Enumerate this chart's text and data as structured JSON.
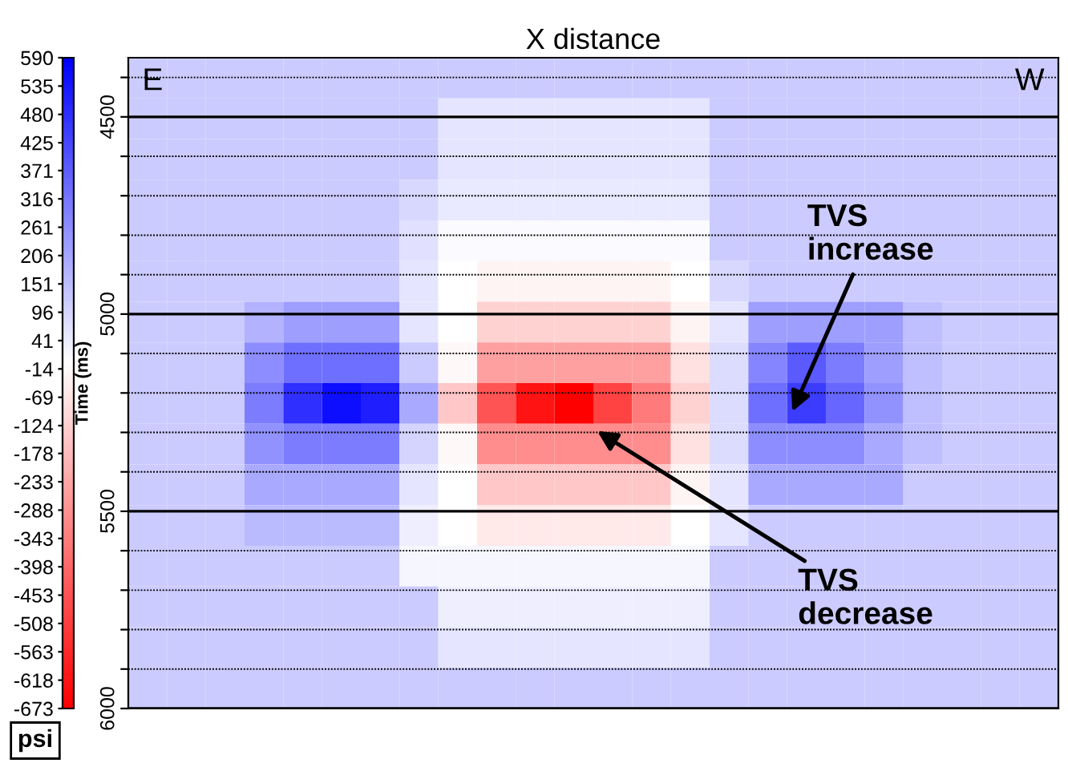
{
  "chart_data": {
    "type": "heatmap",
    "xlabel": "X distance",
    "ylabel": "Time (ms)",
    "clabel": "psi",
    "categories": [
      null,
      null,
      null,
      null,
      null,
      null,
      null,
      null,
      null,
      null,
      null,
      null,
      null,
      null,
      null,
      null,
      null,
      null,
      null,
      null,
      null,
      null,
      null,
      null
    ],
    "ylim": [
      6000,
      4350
    ],
    "yticks": [
      {
        "value": 4400,
        "label": null
      },
      4500,
      {
        "value": 4600,
        "label": null
      },
      {
        "value": 4700,
        "label": null
      },
      {
        "value": 4800,
        "label": null
      },
      {
        "value": 4900,
        "label": null
      },
      5000,
      {
        "value": 5100,
        "label": null
      },
      {
        "value": 5200,
        "label": null
      },
      {
        "value": 5300,
        "label": null
      },
      {
        "value": 5400,
        "label": null
      },
      5500,
      {
        "value": 5600,
        "label": null
      },
      {
        "value": 5700,
        "label": null
      },
      {
        "value": 5800,
        "label": null
      },
      {
        "value": 5900,
        "label": null
      },
      6000
    ],
    "grid": "y",
    "tick_labels": "y",
    "colors": [
      "#ff0000",
      "#ffffff",
      "#0000ff"
    ],
    "clim": [
      -673,
      590
    ],
    "cticks": [
      590,
      535,
      480,
      425,
      371,
      316,
      261,
      206,
      151,
      96,
      41,
      -14,
      -69,
      -124,
      -178,
      -233,
      -288,
      -343,
      -398,
      -453,
      -508,
      -563,
      -618,
      -673
    ],
    "cells": [
      [
        120,
        120,
        120,
        120,
        120,
        120,
        120,
        120,
        120,
        120,
        120,
        120,
        120,
        120,
        120,
        120,
        120,
        120,
        120,
        120,
        120,
        120,
        120,
        120
      ],
      [
        120,
        120,
        120,
        120,
        120,
        120,
        120,
        120,
        60,
        60,
        60,
        60,
        60,
        60,
        60,
        120,
        120,
        120,
        120,
        120,
        120,
        120,
        120,
        120
      ],
      [
        120,
        120,
        120,
        120,
        120,
        120,
        120,
        120,
        60,
        60,
        60,
        60,
        60,
        60,
        60,
        120,
        120,
        120,
        120,
        120,
        120,
        120,
        120,
        120
      ],
      [
        120,
        120,
        120,
        120,
        120,
        120,
        120,
        90,
        50,
        50,
        50,
        50,
        50,
        50,
        50,
        120,
        120,
        120,
        120,
        120,
        120,
        120,
        120,
        120
      ],
      [
        120,
        120,
        120,
        120,
        120,
        120,
        120,
        70,
        10,
        10,
        10,
        10,
        10,
        10,
        10,
        120,
        120,
        120,
        120,
        120,
        120,
        120,
        120,
        120
      ],
      [
        120,
        120,
        120,
        120,
        120,
        120,
        120,
        60,
        0,
        -30,
        -30,
        -30,
        -30,
        -30,
        0,
        90,
        120,
        120,
        120,
        120,
        120,
        120,
        120,
        120
      ],
      [
        120,
        120,
        120,
        180,
        220,
        220,
        220,
        60,
        0,
        -120,
        -120,
        -120,
        -120,
        -120,
        -30,
        60,
        220,
        220,
        220,
        220,
        150,
        120,
        120,
        120
      ],
      [
        120,
        120,
        120,
        260,
        330,
        330,
        330,
        120,
        -20,
        -250,
        -250,
        -250,
        -250,
        -250,
        -80,
        80,
        280,
        380,
        300,
        220,
        150,
        120,
        120,
        120
      ],
      [
        120,
        120,
        120,
        300,
        480,
        560,
        520,
        200,
        -150,
        -450,
        -620,
        -673,
        -500,
        -350,
        -120,
        80,
        330,
        450,
        350,
        250,
        150,
        120,
        120,
        120
      ],
      [
        120,
        120,
        120,
        250,
        300,
        300,
        300,
        100,
        -20,
        -300,
        -300,
        -300,
        -300,
        -300,
        -80,
        80,
        260,
        260,
        260,
        200,
        150,
        120,
        120,
        120
      ],
      [
        120,
        120,
        120,
        200,
        200,
        200,
        200,
        60,
        0,
        -150,
        -150,
        -150,
        -150,
        -150,
        -30,
        60,
        200,
        200,
        200,
        200,
        120,
        120,
        120,
        120
      ],
      [
        120,
        120,
        120,
        160,
        160,
        160,
        160,
        40,
        0,
        -60,
        -60,
        -60,
        -60,
        -60,
        0,
        60,
        120,
        120,
        120,
        120,
        120,
        120,
        120,
        120
      ],
      [
        120,
        120,
        120,
        120,
        120,
        120,
        120,
        20,
        20,
        20,
        20,
        20,
        20,
        20,
        20,
        120,
        120,
        120,
        120,
        120,
        120,
        120,
        120,
        120
      ],
      [
        120,
        120,
        120,
        120,
        120,
        120,
        120,
        120,
        40,
        40,
        40,
        40,
        40,
        40,
        40,
        120,
        120,
        120,
        120,
        120,
        120,
        120,
        120,
        120
      ],
      [
        120,
        120,
        120,
        120,
        120,
        120,
        120,
        120,
        60,
        60,
        60,
        60,
        60,
        60,
        60,
        120,
        120,
        120,
        120,
        120,
        120,
        120,
        120,
        120
      ],
      [
        120,
        120,
        120,
        120,
        120,
        120,
        120,
        120,
        120,
        120,
        120,
        120,
        120,
        120,
        120,
        120,
        120,
        120,
        120,
        120,
        120,
        120,
        120,
        120
      ]
    ],
    "annotations": [
      "E",
      "W",
      "TVS\nincrease",
      "TVS\ndecrease"
    ]
  }
}
